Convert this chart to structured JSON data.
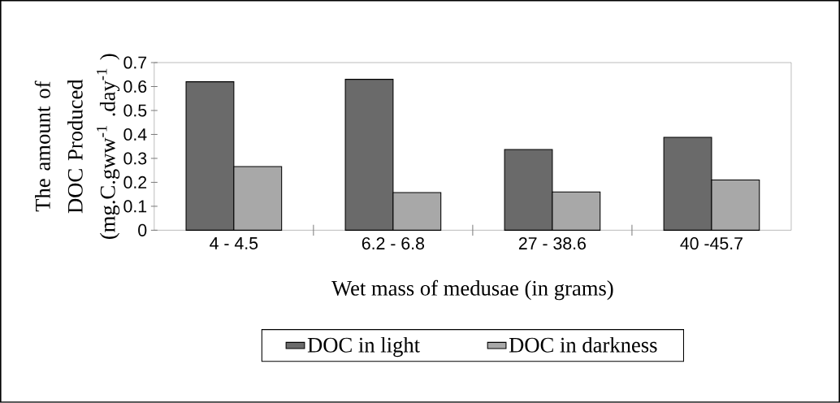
{
  "chart_data": {
    "type": "bar",
    "xlabel": "Wet mass of medusae (in grams)",
    "ylabel": "The amount of DOC Produced (mg.C.gww$^{-1}$ .day$^{-1}$ )",
    "categories": [
      "4 - 4.5",
      "6.2 - 6.8",
      "27 - 38.6",
      "40 -45.7"
    ],
    "series": [
      {
        "name": "DOC in light",
        "color": "#6a6a6a",
        "values": [
          0.62,
          0.63,
          0.337,
          0.388
        ]
      },
      {
        "name": "DOC in darkness",
        "color": "#a8a8a8",
        "values": [
          0.266,
          0.157,
          0.16,
          0.21
        ]
      }
    ],
    "ylim": [
      0,
      0.7
    ],
    "yticks": [
      0,
      0.1,
      0.2,
      0.3,
      0.4,
      0.5,
      0.6,
      0.7
    ],
    "grid": false,
    "legend": "bottom"
  }
}
